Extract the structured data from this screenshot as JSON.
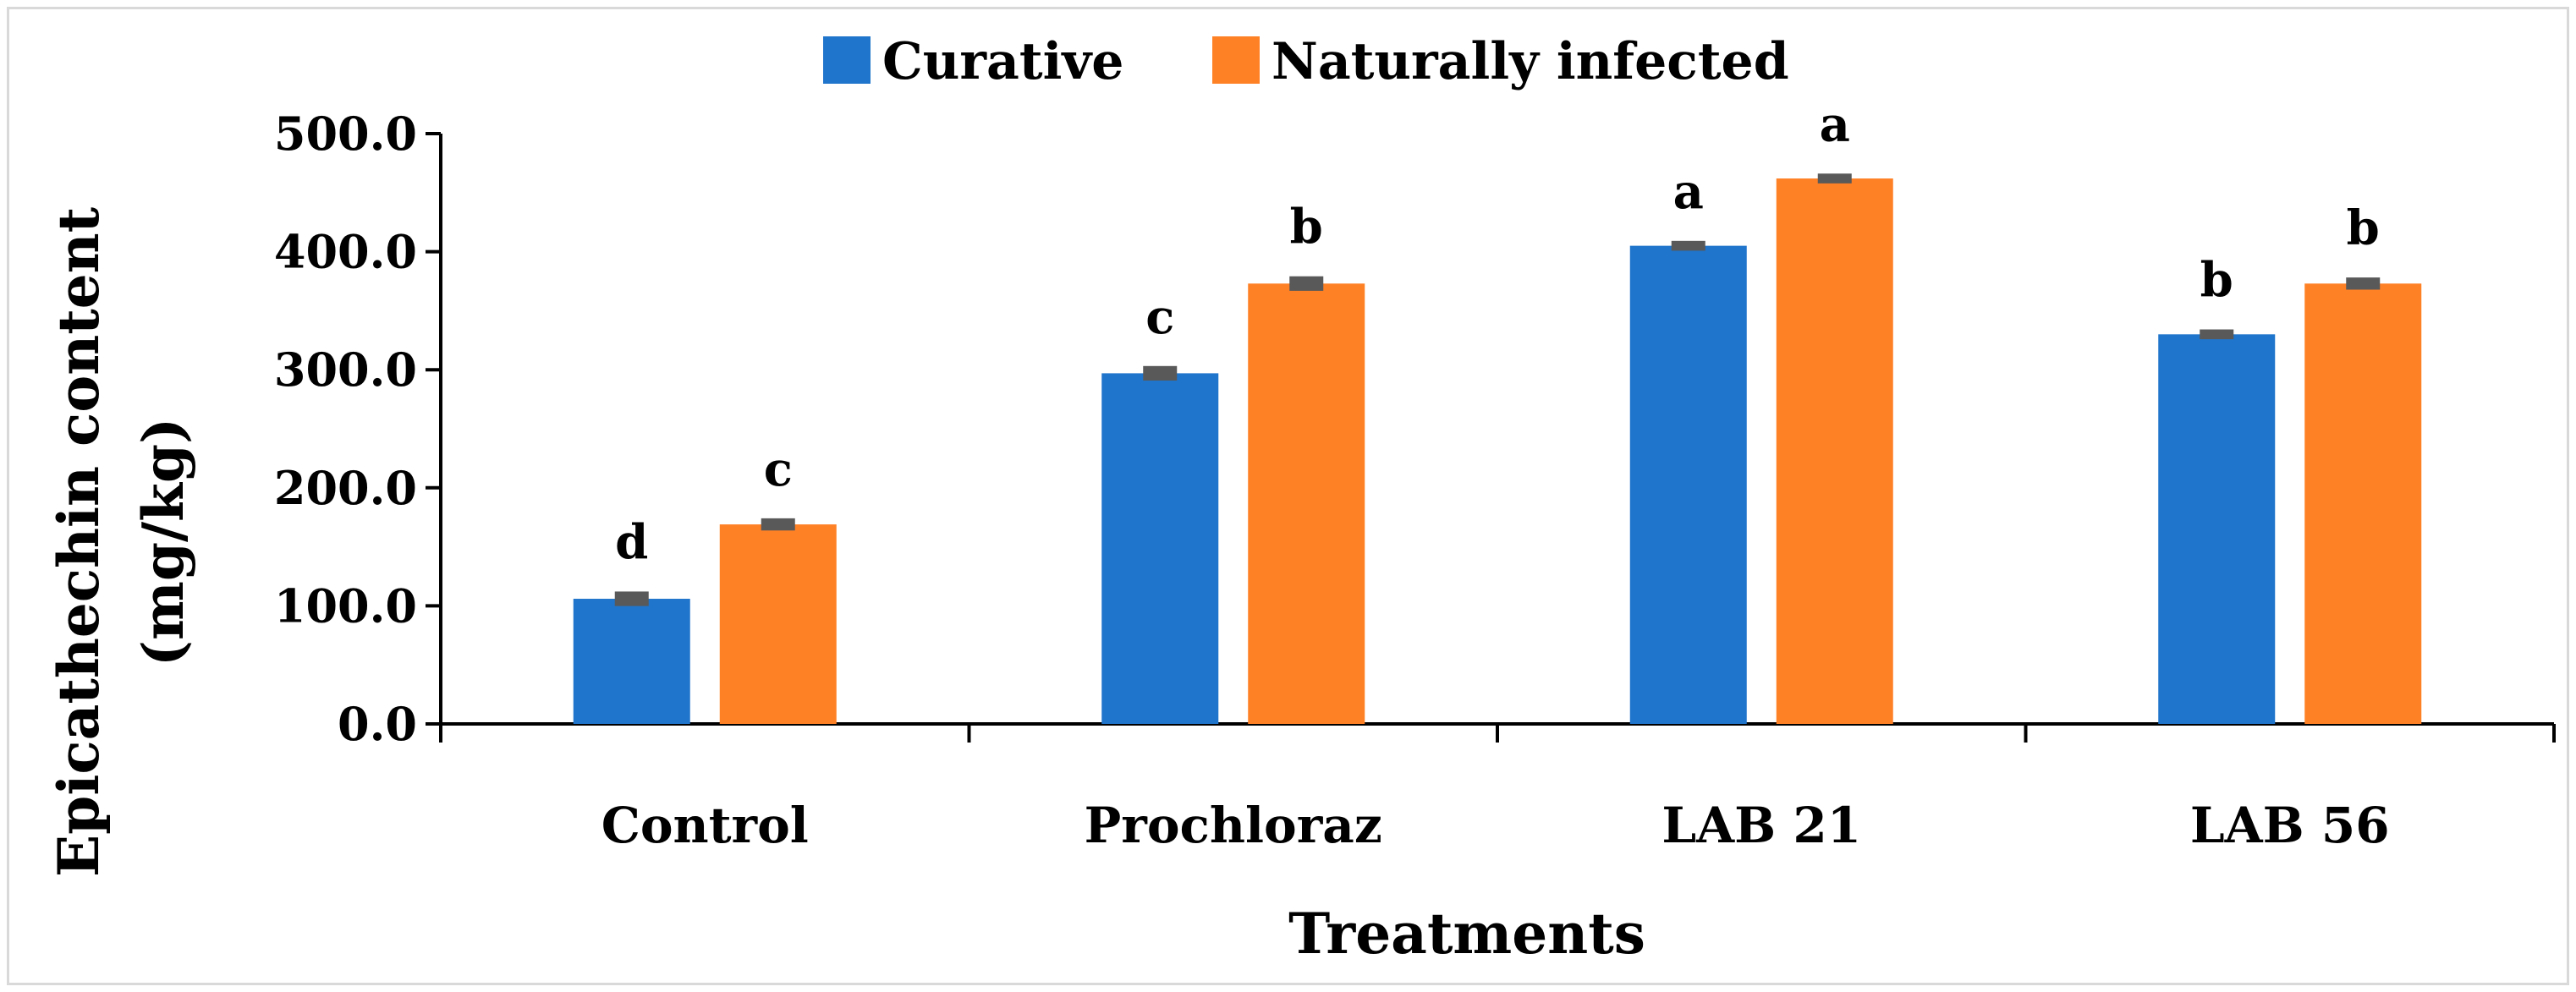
{
  "chart_data": {
    "type": "bar",
    "title": "",
    "xlabel": "Treatments",
    "ylabel": [
      "Epicathechin content",
      "(mg/kg)"
    ],
    "categories": [
      "Control",
      "Prochloraz",
      "LAB 21",
      "LAB 56"
    ],
    "series": [
      {
        "name": "Curative",
        "color": "#1f74cb",
        "values": [
          106,
          297,
          405,
          330
        ],
        "errors": [
          4,
          4,
          2,
          2
        ],
        "letters": [
          "d",
          "c",
          "a",
          "b"
        ]
      },
      {
        "name": "Naturally infected",
        "color": "#ff8126",
        "values": [
          169,
          373,
          462,
          373
        ],
        "errors": [
          3,
          4,
          2,
          3
        ],
        "letters": [
          "c",
          "b",
          "a",
          "b"
        ]
      }
    ],
    "ylim": [
      0,
      500
    ],
    "yticks": [
      "0.0",
      "100.0",
      "200.0",
      "300.0",
      "400.0",
      "500.0"
    ],
    "legend_position": "top-center",
    "grid": false,
    "error_bar_color": "#595959"
  }
}
